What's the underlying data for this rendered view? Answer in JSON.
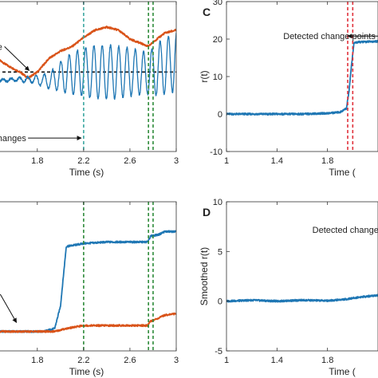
{
  "chart_data": [
    {
      "id": "A",
      "panel_label": "",
      "type": "line",
      "xlabel": "Time (s)",
      "ylabel": "",
      "xlim": [
        1.45,
        3.0
      ],
      "ylim": [
        0,
        100
      ],
      "xticks": [
        1.8,
        2.2,
        2.6,
        3
      ],
      "xtick_labels": [
        "1.8",
        "2.2",
        "2.6",
        "3"
      ],
      "hline": 53,
      "vlines": [
        {
          "x": 2.2,
          "color": "#3aa6a0"
        },
        {
          "x": 2.76,
          "color": "#2e8b3a"
        },
        {
          "x": 2.8,
          "color": "#2e8b3a"
        }
      ],
      "annotations": [
        {
          "text": "e",
          "x": 1.455,
          "y": 70,
          "arrow_to": [
            1.73,
            54
          ]
        },
        {
          "text": "hanges",
          "x": 1.455,
          "y": 9,
          "arrow_to": [
            2.18,
            9
          ]
        }
      ],
      "series": [
        {
          "color": "#d95319",
          "x": [
            1.45,
            1.55,
            1.65,
            1.72,
            1.8,
            1.9,
            2.0,
            2.1,
            2.2,
            2.3,
            2.4,
            2.5,
            2.6,
            2.7,
            2.76,
            2.8,
            2.9,
            3.0
          ],
          "y": [
            62,
            57,
            53,
            49,
            53,
            62,
            67,
            70,
            76,
            81,
            83,
            81,
            75,
            72,
            70,
            73,
            79,
            81
          ]
        },
        {
          "color": "#1f77b4",
          "oscillating": true,
          "x": [
            1.45,
            1.6,
            1.75,
            1.9,
            2.0,
            2.1,
            2.2,
            2.3,
            2.45,
            2.6,
            2.75,
            2.85,
            3.0
          ],
          "center": [
            47,
            48,
            48,
            47,
            50,
            52,
            53,
            53,
            53,
            53,
            52,
            55,
            60
          ],
          "amplitude": [
            1,
            1,
            2,
            5,
            10,
            14,
            16,
            18,
            18,
            16,
            14,
            18,
            20
          ]
        }
      ]
    },
    {
      "id": "B",
      "panel_label": "",
      "type": "line",
      "xlabel": "Time (s)",
      "ylabel": "",
      "xlim": [
        1.45,
        3.0
      ],
      "ylim": [
        0,
        100
      ],
      "xticks": [
        1.8,
        2.2,
        2.6,
        3
      ],
      "xtick_labels": [
        "1.8",
        "2.2",
        "2.6",
        "3"
      ],
      "vlines": [
        {
          "x": 2.2,
          "color": "#2e8b3a"
        },
        {
          "x": 2.76,
          "color": "#2e8b3a"
        },
        {
          "x": 2.8,
          "color": "#2e8b3a"
        }
      ],
      "annotations": [
        {
          "text": "",
          "x": 1.48,
          "y": 38,
          "arrow_to": [
            1.62,
            19
          ]
        }
      ],
      "series": [
        {
          "color": "#1f77b4",
          "x": [
            1.45,
            1.6,
            1.75,
            1.85,
            1.9,
            1.95,
            2.0,
            2.05,
            2.2,
            2.4,
            2.6,
            2.75,
            2.78,
            2.85,
            2.9,
            3.0
          ],
          "y": [
            13,
            13,
            13,
            13,
            14,
            15,
            30,
            70,
            72,
            73,
            73,
            73,
            77,
            78,
            80,
            80
          ]
        },
        {
          "color": "#d95319",
          "x": [
            1.45,
            1.6,
            1.8,
            1.95,
            2.0,
            2.05,
            2.2,
            2.4,
            2.6,
            2.75,
            2.78,
            2.85,
            2.9,
            3.0
          ],
          "y": [
            13,
            13,
            13,
            13,
            14,
            15,
            17,
            17,
            17,
            17,
            20,
            22,
            24,
            25
          ]
        }
      ]
    },
    {
      "id": "C",
      "panel_label": "C",
      "type": "line",
      "xlabel": "Time (",
      "ylabel": "r(t)",
      "xlim": [
        1,
        2.2
      ],
      "ylim": [
        -10,
        30
      ],
      "yticks": [
        -10,
        0,
        10,
        20,
        30
      ],
      "ytick_labels": [
        "-10",
        "0",
        "10",
        "20",
        "30"
      ],
      "xticks": [
        1,
        1.4,
        1.8
      ],
      "xtick_labels": [
        "1",
        "1.4",
        "1.8"
      ],
      "vlines": [
        {
          "x": 1.96,
          "color": "#e0303a"
        },
        {
          "x": 2.0,
          "color": "#e0303a"
        }
      ],
      "annotations": [
        {
          "text": "Detected change points",
          "x": 1.45,
          "y": 20.8,
          "arrow_to": [
            1.96,
            20.8
          ]
        }
      ],
      "series": [
        {
          "color": "#1f77b4",
          "x": [
            1.0,
            1.3,
            1.6,
            1.8,
            1.9,
            1.95,
            1.97,
            1.99,
            2.01,
            2.05,
            2.2
          ],
          "y": [
            0,
            0,
            0,
            0.2,
            0.5,
            1.5,
            6,
            13,
            19,
            19.2,
            19.4
          ]
        }
      ]
    },
    {
      "id": "D",
      "panel_label": "D",
      "type": "line",
      "xlabel": "Time (",
      "ylabel": "Smoothed r(t)",
      "xlim": [
        1,
        2.2
      ],
      "ylim": [
        -5,
        10
      ],
      "yticks": [
        -5,
        0,
        5,
        10
      ],
      "ytick_labels": [
        "-5",
        "0",
        "5",
        "10"
      ],
      "xticks": [
        1,
        1.4,
        1.8
      ],
      "xtick_labels": [
        "1",
        "1.4",
        "1.8"
      ],
      "vlines": [],
      "annotations": [
        {
          "text": "Detected change points",
          "x": 1.68,
          "y": 7.2,
          "arrow_to": [
            2.2,
            7.2
          ]
        }
      ],
      "series": [
        {
          "color": "#1f77b4",
          "x": [
            1.0,
            1.2,
            1.4,
            1.6,
            1.8,
            1.95,
            2.05,
            2.2
          ],
          "y": [
            0,
            0.1,
            0,
            0.1,
            0.05,
            0.2,
            0.4,
            0.6
          ]
        }
      ]
    }
  ]
}
